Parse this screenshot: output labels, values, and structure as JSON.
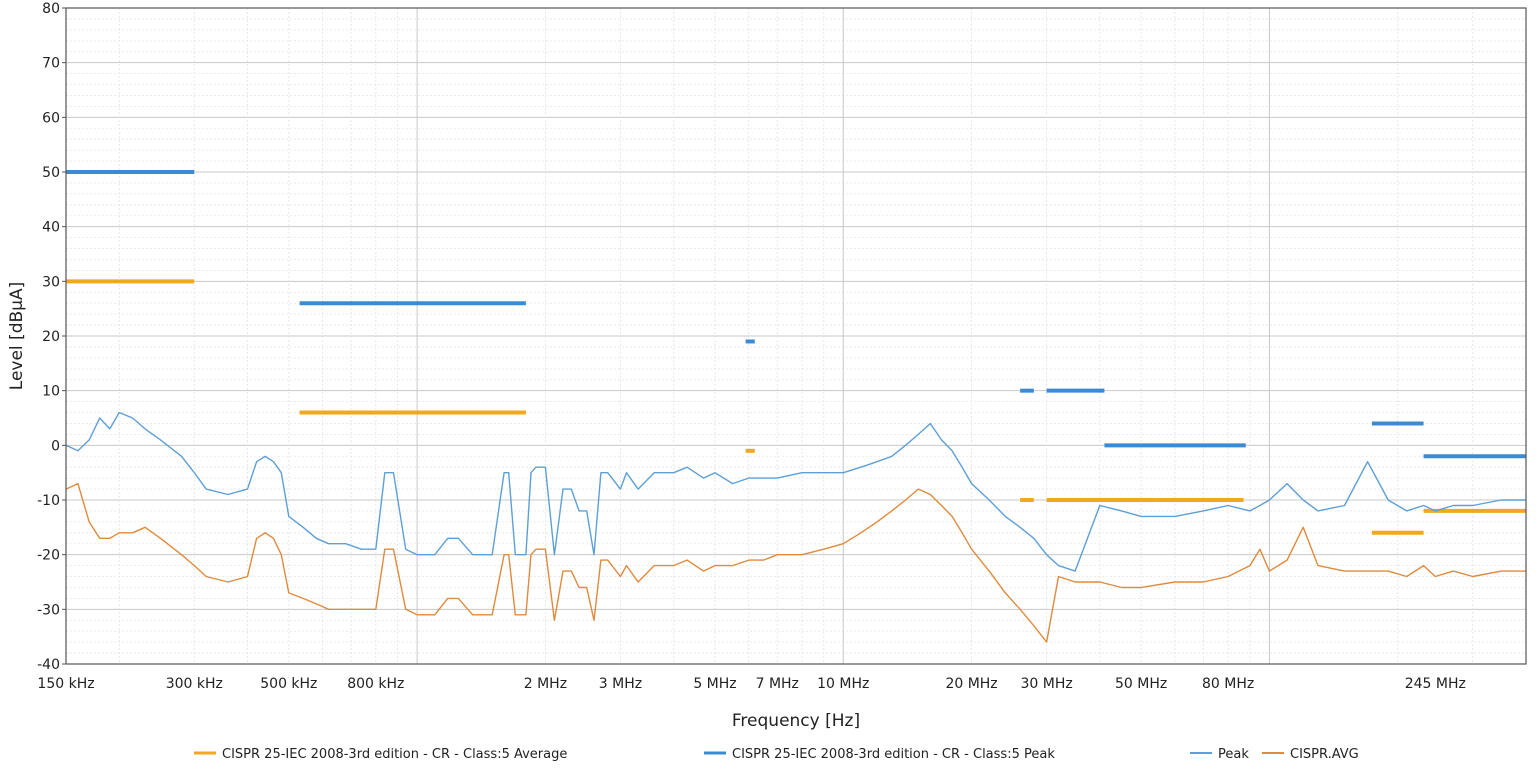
{
  "chart_data": {
    "type": "line",
    "x_scale": "log",
    "xlabel": "Frequency [Hz]",
    "ylabel": "Level [dBµA]",
    "xlim": [
      150000,
      400000000
    ],
    "ylim": [
      -40,
      80
    ],
    "y_ticks": [
      80,
      70,
      60,
      50,
      40,
      30,
      20,
      10,
      0,
      -10,
      -20,
      -30,
      -40
    ],
    "x_ticks": [
      {
        "value": 150000,
        "label": "150 kHz"
      },
      {
        "value": 300000,
        "label": "300 kHz"
      },
      {
        "value": 500000,
        "label": "500 kHz"
      },
      {
        "value": 800000,
        "label": "800 kHz"
      },
      {
        "value": 2000000,
        "label": "2 MHz"
      },
      {
        "value": 3000000,
        "label": "3 MHz"
      },
      {
        "value": 5000000,
        "label": "5 MHz"
      },
      {
        "value": 7000000,
        "label": "7 MHz"
      },
      {
        "value": 10000000,
        "label": "10 MHz"
      },
      {
        "value": 20000000,
        "label": "20 MHz"
      },
      {
        "value": 30000000,
        "label": "30 MHz"
      },
      {
        "value": 50000000,
        "label": "50 MHz"
      },
      {
        "value": 80000000,
        "label": "80 MHz"
      },
      {
        "value": 245000000,
        "label": "245 MHz"
      }
    ],
    "grid": true,
    "legend_position": "bottom",
    "colors": {
      "limit_avg": "#f0a81e",
      "limit_peak": "#3c8ad2",
      "peak": "#5d9fd6",
      "avg": "#e08a3c"
    },
    "series": [
      {
        "name": "CISPR 25-IEC 2008-3rd edition - CR - Class:5 Average",
        "kind": "limit",
        "color_key": "limit_avg",
        "segments": [
          {
            "x": [
              150000,
              300000
            ],
            "y": 30
          },
          {
            "x": [
              530000,
              1800000
            ],
            "y": 6
          },
          {
            "x": [
              5900000,
              6200000
            ],
            "y": -1
          },
          {
            "x": [
              26000000,
              28000000
            ],
            "y": -10
          },
          {
            "x": [
              30000000,
              54000000
            ],
            "y": -10
          },
          {
            "x": [
              54000000,
              87000000
            ],
            "y": -10
          },
          {
            "x": [
              174000000,
              230000000
            ],
            "y": -16
          },
          {
            "x": [
              230000000,
              400000000
            ],
            "y": -12
          }
        ]
      },
      {
        "name": "CISPR 25-IEC 2008-3rd edition - CR - Class:5 Peak",
        "kind": "limit",
        "color_key": "limit_peak",
        "segments": [
          {
            "x": [
              150000,
              300000
            ],
            "y": 50
          },
          {
            "x": [
              530000,
              1800000
            ],
            "y": 26
          },
          {
            "x": [
              5900000,
              6200000
            ],
            "y": 19
          },
          {
            "x": [
              26000000,
              28000000
            ],
            "y": 10
          },
          {
            "x": [
              30000000,
              41000000
            ],
            "y": 10
          },
          {
            "x": [
              41000000,
              88000000
            ],
            "y": 0
          },
          {
            "x": [
              174000000,
              230000000
            ],
            "y": 4
          },
          {
            "x": [
              230000000,
              400000000
            ],
            "y": -2
          }
        ]
      },
      {
        "name": "Peak",
        "kind": "trace",
        "color_key": "peak",
        "x": [
          150000,
          160000,
          170000,
          180000,
          190000,
          200000,
          215000,
          230000,
          250000,
          280000,
          300000,
          320000,
          360000,
          400000,
          420000,
          440000,
          460000,
          480000,
          500000,
          540000,
          580000,
          620000,
          680000,
          740000,
          800000,
          840000,
          880000,
          940000,
          1000000,
          1100000,
          1180000,
          1250000,
          1350000,
          1500000,
          1600000,
          1640000,
          1700000,
          1800000,
          1850000,
          1900000,
          2000000,
          2100000,
          2200000,
          2300000,
          2400000,
          2500000,
          2600000,
          2700000,
          2800000,
          3000000,
          3100000,
          3300000,
          3600000,
          4000000,
          4300000,
          4700000,
          5000000,
          5500000,
          6000000,
          6500000,
          7000000,
          8000000,
          9000000,
          10000000,
          11000000,
          12000000,
          13000000,
          14000000,
          15000000,
          16000000,
          17000000,
          18000000,
          19000000,
          20000000,
          22000000,
          24000000,
          26000000,
          28000000,
          30000000,
          32000000,
          35000000,
          40000000,
          45000000,
          50000000,
          60000000,
          70000000,
          80000000,
          90000000,
          95000000,
          100000000,
          110000000,
          120000000,
          130000000,
          150000000,
          170000000,
          190000000,
          210000000,
          230000000,
          245000000,
          270000000,
          300000000,
          350000000,
          400000000
        ],
        "y": [
          0,
          -1,
          1,
          5,
          3,
          6,
          5,
          3,
          1,
          -2,
          -5,
          -8,
          -9,
          -8,
          -3,
          -2,
          -3,
          -5,
          -13,
          -15,
          -17,
          -18,
          -18,
          -19,
          -19,
          -5,
          -5,
          -19,
          -20,
          -20,
          -17,
          -17,
          -20,
          -20,
          -5,
          -5,
          -20,
          -20,
          -5,
          -4,
          -4,
          -20,
          -8,
          -8,
          -12,
          -12,
          -20,
          -5,
          -5,
          -8,
          -5,
          -8,
          -5,
          -5,
          -4,
          -6,
          -5,
          -7,
          -6,
          -6,
          -6,
          -5,
          -5,
          -5,
          -4,
          -3,
          -2,
          0,
          2,
          4,
          1,
          -1,
          -4,
          -7,
          -10,
          -13,
          -15,
          -17,
          -20,
          -22,
          -23,
          -11,
          -12,
          -13,
          -13,
          -12,
          -11,
          -12,
          -11,
          -10,
          -7,
          -10,
          -12,
          -11,
          -3,
          -10,
          -12,
          -11,
          -12,
          -11,
          -11,
          -10,
          -10
        ]
      },
      {
        "name": "CISPR.AVG",
        "kind": "trace",
        "color_key": "avg",
        "x": [
          150000,
          160000,
          170000,
          180000,
          190000,
          200000,
          215000,
          230000,
          250000,
          280000,
          300000,
          320000,
          360000,
          400000,
          420000,
          440000,
          460000,
          480000,
          500000,
          540000,
          580000,
          620000,
          680000,
          740000,
          800000,
          840000,
          880000,
          940000,
          1000000,
          1100000,
          1180000,
          1250000,
          1350000,
          1500000,
          1600000,
          1640000,
          1700000,
          1800000,
          1850000,
          1900000,
          2000000,
          2100000,
          2200000,
          2300000,
          2400000,
          2500000,
          2600000,
          2700000,
          2800000,
          3000000,
          3100000,
          3300000,
          3600000,
          4000000,
          4300000,
          4700000,
          5000000,
          5500000,
          6000000,
          6500000,
          7000000,
          8000000,
          9000000,
          10000000,
          11000000,
          12000000,
          13000000,
          14000000,
          15000000,
          16000000,
          17000000,
          18000000,
          19000000,
          20000000,
          22000000,
          24000000,
          26000000,
          28000000,
          30000000,
          32000000,
          35000000,
          40000000,
          45000000,
          50000000,
          60000000,
          70000000,
          80000000,
          90000000,
          95000000,
          100000000,
          110000000,
          120000000,
          130000000,
          150000000,
          170000000,
          190000000,
          210000000,
          230000000,
          245000000,
          270000000,
          300000000,
          350000000,
          400000000
        ],
        "y": [
          -8,
          -7,
          -14,
          -17,
          -17,
          -16,
          -16,
          -15,
          -17,
          -20,
          -22,
          -24,
          -25,
          -24,
          -17,
          -16,
          -17,
          -20,
          -27,
          -28,
          -29,
          -30,
          -30,
          -30,
          -30,
          -19,
          -19,
          -30,
          -31,
          -31,
          -28,
          -28,
          -31,
          -31,
          -20,
          -20,
          -31,
          -31,
          -20,
          -19,
          -19,
          -32,
          -23,
          -23,
          -26,
          -26,
          -32,
          -21,
          -21,
          -24,
          -22,
          -25,
          -22,
          -22,
          -21,
          -23,
          -22,
          -22,
          -21,
          -21,
          -20,
          -20,
          -19,
          -18,
          -16,
          -14,
          -12,
          -10,
          -8,
          -9,
          -11,
          -13,
          -16,
          -19,
          -23,
          -27,
          -30,
          -33,
          -36,
          -24,
          -25,
          -25,
          -26,
          -26,
          -25,
          -25,
          -24,
          -22,
          -19,
          -23,
          -21,
          -15,
          -22,
          -23,
          -23,
          -23,
          -24,
          -22,
          -24,
          -23,
          -24,
          -23,
          -23
        ]
      }
    ]
  }
}
